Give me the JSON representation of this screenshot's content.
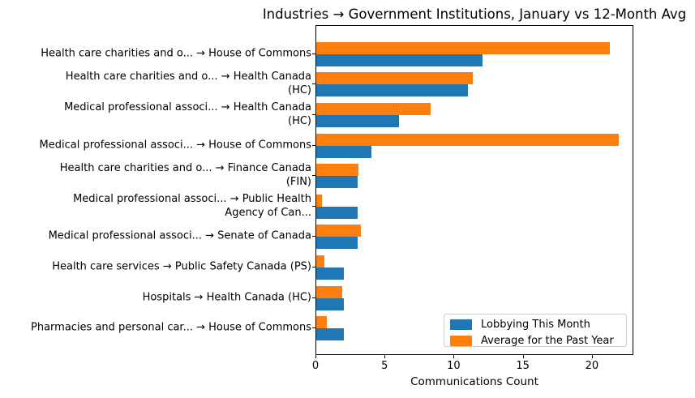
{
  "chart_data": {
    "type": "bar",
    "orientation": "horizontal",
    "title": "Industries → Government Institutions, January vs 12-Month Avg",
    "xlabel": "Communications Count",
    "ylabel": "",
    "xlim": [
      0,
      23
    ],
    "xticks": [
      0,
      5,
      10,
      15,
      20
    ],
    "grid": false,
    "legend_position": "lower-right",
    "categories": [
      "Health care charities and o... → House of Commons",
      "Health care charities and o... → Health Canada\n(HC)",
      "Medical professional associ... → Health Canada\n(HC)",
      "Medical professional associ... → House of Commons",
      "Health care charities and o... → Finance Canada\n(FIN)",
      "Medical professional associ... → Public Health\nAgency of Can...",
      "Medical professional associ... → Senate of Canada",
      "Health care services → Public Safety Canada (PS)",
      "Hospitals → Health Canada (HC)",
      "Pharmacies and personal car... → House of Commons"
    ],
    "series": [
      {
        "name": "Lobbying This Month",
        "color": "#1f77b4",
        "values": [
          12,
          11,
          6,
          4,
          3,
          3,
          3,
          2,
          2,
          2
        ]
      },
      {
        "name": "Average for the Past Year",
        "color": "#ff7f0e",
        "values": [
          21.25,
          11.3,
          8.3,
          21.9,
          3.05,
          0.4,
          3.25,
          0.6,
          1.9,
          0.75
        ]
      }
    ]
  }
}
